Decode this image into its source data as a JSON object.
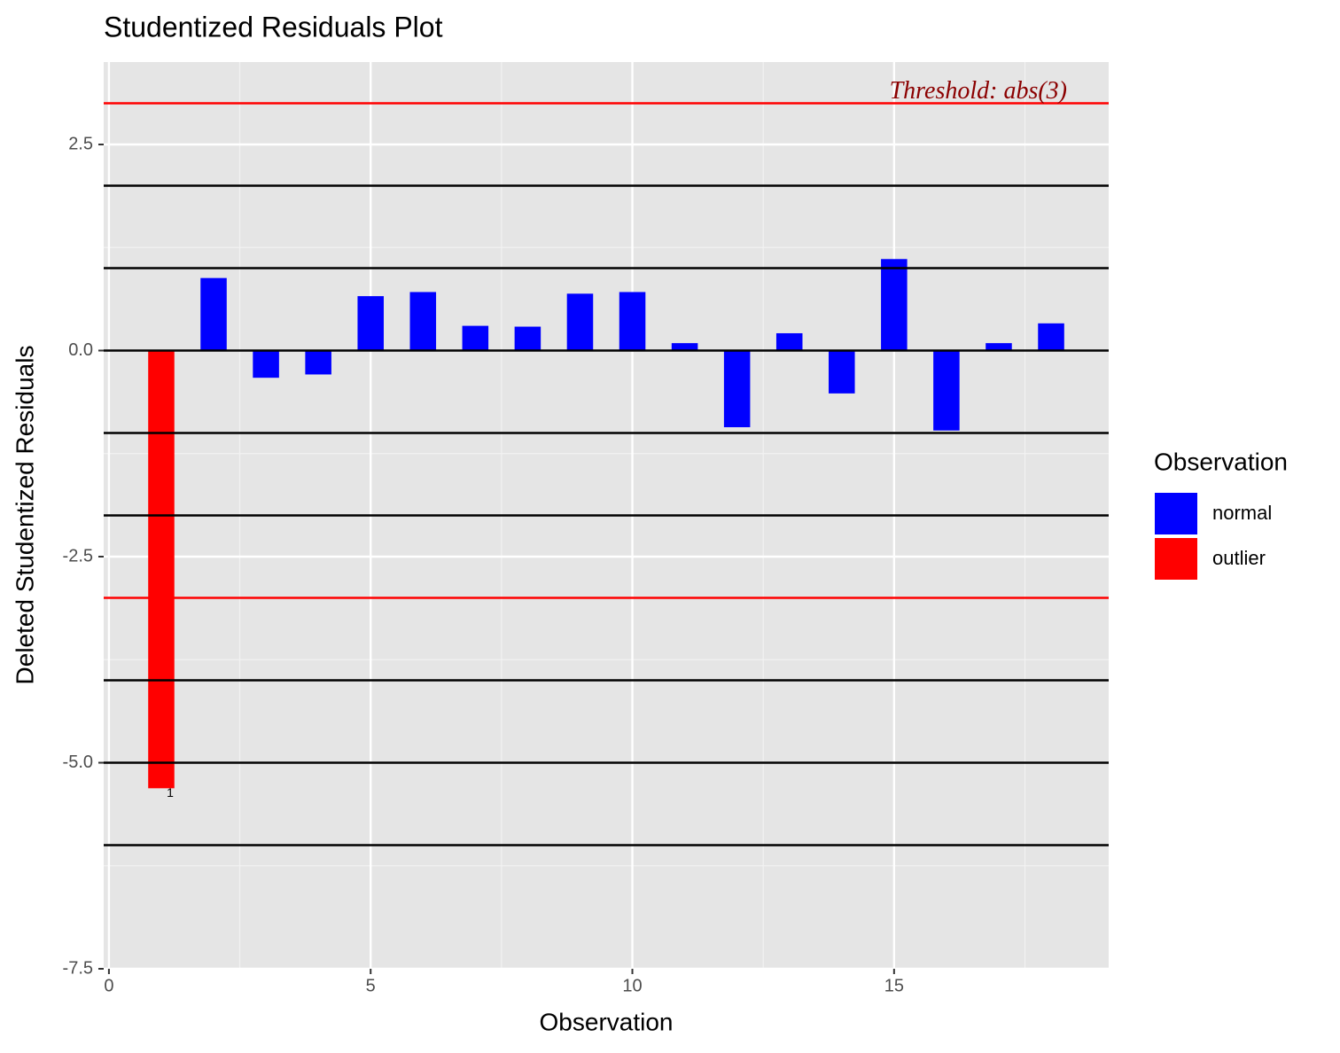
{
  "chart_data": {
    "type": "bar",
    "title": "Studentized Residuals Plot",
    "x_label": "Observation",
    "y_label": "Deleted Studentized Residuals",
    "xlim": [
      -0.1,
      19.1
    ],
    "ylim": [
      -7.5,
      3.5
    ],
    "xticks": [
      0,
      5,
      10,
      15
    ],
    "yticks": [
      2.5,
      {
        "value": 0,
        "label": "0.0"
      },
      -2.5,
      {
        "value": -5,
        "label": "-5.0"
      },
      -7.5
    ],
    "grid": true,
    "bar_width": 0.5,
    "legend_title": "Observation",
    "legend_position": "right",
    "series": [
      {
        "name": "normal",
        "color": "#0000ff",
        "x": [
          2,
          3,
          4,
          5,
          6,
          7,
          8,
          9,
          10,
          11,
          12,
          13,
          14,
          15,
          16,
          17,
          18
        ],
        "values": [
          0.88,
          -0.33,
          -0.29,
          0.66,
          0.71,
          0.3,
          0.29,
          0.69,
          0.71,
          0.09,
          -0.93,
          0.21,
          -0.52,
          1.11,
          -0.97,
          0.09,
          0.33
        ]
      },
      {
        "name": "outlier",
        "color": "#ff0000",
        "x": [
          1
        ],
        "values": [
          -5.31
        ],
        "label_points": true
      }
    ],
    "hlines": [
      {
        "y": 3,
        "color": "#ff0000"
      },
      {
        "y": 2,
        "color": "#000000"
      },
      {
        "y": 1,
        "color": "#000000"
      },
      {
        "y": 0,
        "color": "#000000"
      },
      {
        "y": -1,
        "color": "#000000"
      },
      {
        "y": -2,
        "color": "#000000"
      },
      {
        "y": -3,
        "color": "#ff0000"
      },
      {
        "y": -4,
        "color": "#000000"
      },
      {
        "y": -5,
        "color": "#000000"
      },
      {
        "y": -6,
        "color": "#000000"
      }
    ],
    "annotation": {
      "text": "Threshold: abs(3)",
      "color": "#8b0000"
    }
  }
}
